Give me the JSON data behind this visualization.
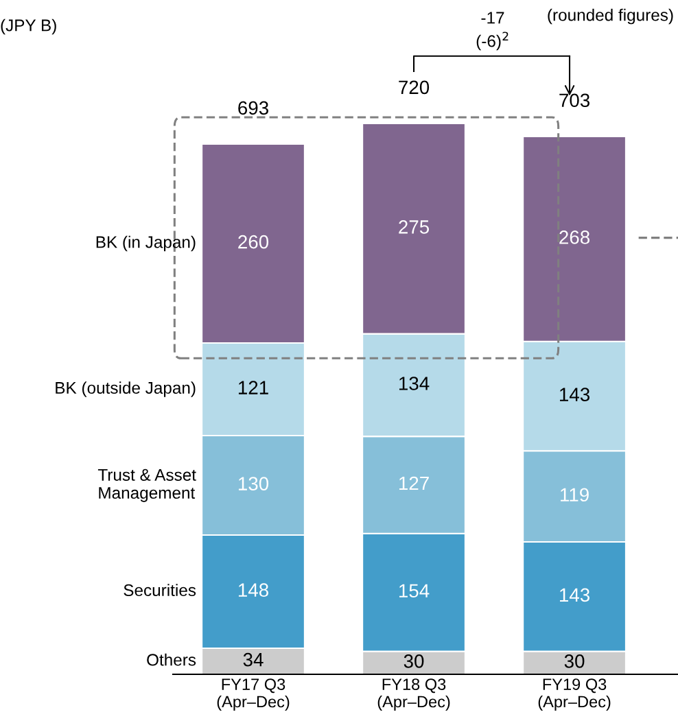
{
  "chart_data": {
    "type": "bar",
    "stacked": true,
    "data_labels": true,
    "categories": [
      "FY17 Q3\n(Apr–Dec)",
      "FY18 Q3\n(Apr–Dec)",
      "FY19 Q3\n(Apr–Dec)"
    ],
    "series": [
      {
        "name": "Others",
        "color": "#cccccc",
        "values": [
          34,
          30,
          30
        ]
      },
      {
        "name": "Securities",
        "color": "#439dca",
        "values": [
          148,
          154,
          143
        ]
      },
      {
        "name": "Trust & Asset\nManagement",
        "color": "#86bfd9",
        "values": [
          130,
          127,
          119
        ]
      },
      {
        "name": "BK (outside Japan)",
        "color": "#b5dae9",
        "values": [
          121,
          134,
          143
        ]
      },
      {
        "name": "BK (in Japan)",
        "color": "#80668f",
        "values": [
          260,
          275,
          268
        ]
      }
    ],
    "totals": [
      "693",
      "720",
      "703"
    ],
    "annotations": [
      "(JPY B)",
      "(rounded figures)",
      "-17",
      "(-6)$^{2}$"
    ],
    "legend": false,
    "tick_labels": "x"
  }
}
